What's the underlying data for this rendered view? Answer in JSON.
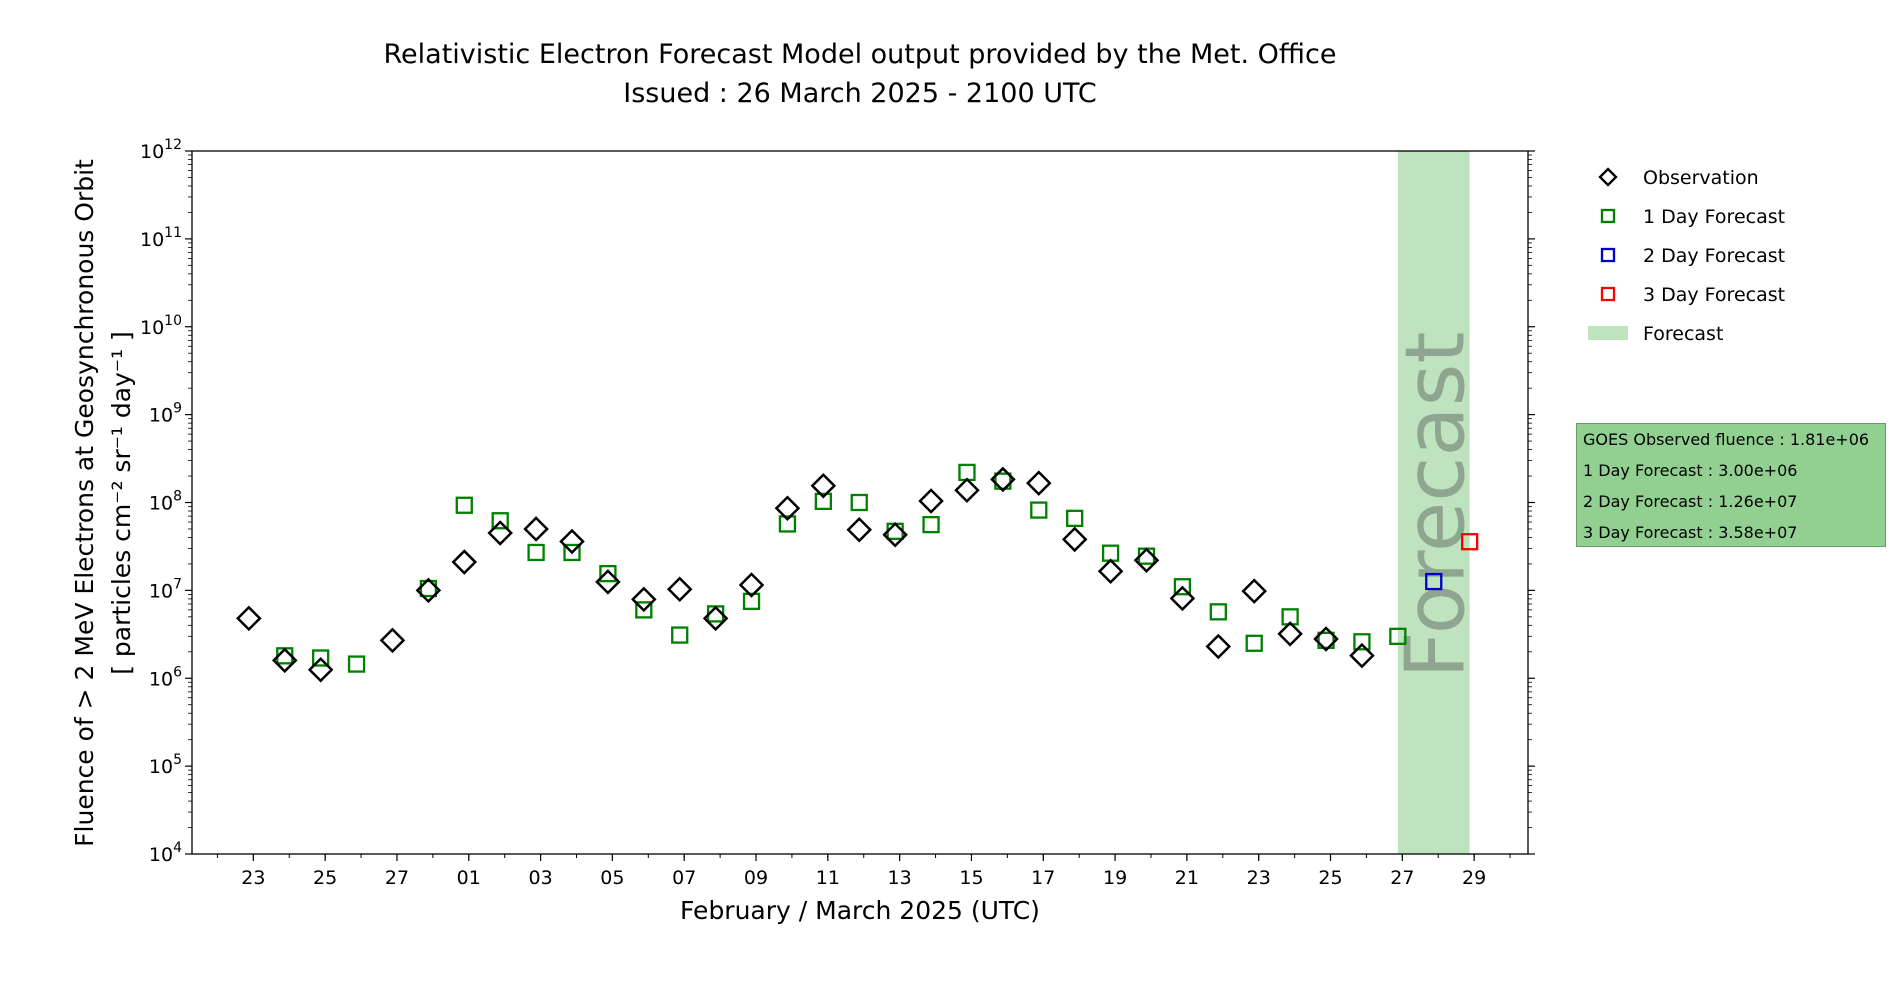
{
  "chart_data": {
    "type": "scatter",
    "title": "Relativistic Electron Forecast Model output provided by the Met. Office",
    "subtitle": "Issued : 26 March 2025 - 2100 UTC",
    "xlabel": "February / March 2025 (UTC)",
    "ylabel_line1": "Fluence of > 2 MeV Electrons at Geosynchronous Orbit",
    "ylabel_line2": "[ particles cm⁻² sr⁻¹ day⁻¹ ]",
    "yscale": "log",
    "ylim": [
      10000,
      1000000000000
    ],
    "xlim": [
      "2025-02-21 07:00",
      "2025-03-30 12:00"
    ],
    "y_ticks": [
      {
        "value": 10000,
        "base": "10",
        "exp": "4"
      },
      {
        "value": 100000,
        "base": "10",
        "exp": "5"
      },
      {
        "value": 1000000,
        "base": "10",
        "exp": "6"
      },
      {
        "value": 10000000,
        "base": "10",
        "exp": "7"
      },
      {
        "value": 100000000,
        "base": "10",
        "exp": "8"
      },
      {
        "value": 1000000000,
        "base": "10",
        "exp": "9"
      },
      {
        "value": 10000000000,
        "base": "10",
        "exp": "10"
      },
      {
        "value": 100000000000,
        "base": "10",
        "exp": "11"
      },
      {
        "value": 1000000000000,
        "base": "10",
        "exp": "12"
      }
    ],
    "x_ticks": [
      {
        "date": "2025-02-23",
        "label": "23"
      },
      {
        "date": "2025-02-25",
        "label": "25"
      },
      {
        "date": "2025-02-27",
        "label": "27"
      },
      {
        "date": "2025-03-01",
        "label": "01"
      },
      {
        "date": "2025-03-03",
        "label": "03"
      },
      {
        "date": "2025-03-05",
        "label": "05"
      },
      {
        "date": "2025-03-07",
        "label": "07"
      },
      {
        "date": "2025-03-09",
        "label": "09"
      },
      {
        "date": "2025-03-11",
        "label": "11"
      },
      {
        "date": "2025-03-13",
        "label": "13"
      },
      {
        "date": "2025-03-15",
        "label": "15"
      },
      {
        "date": "2025-03-17",
        "label": "17"
      },
      {
        "date": "2025-03-19",
        "label": "19"
      },
      {
        "date": "2025-03-21",
        "label": "21"
      },
      {
        "date": "2025-03-23",
        "label": "23"
      },
      {
        "date": "2025-03-25",
        "label": "25"
      },
      {
        "date": "2025-03-27",
        "label": "27"
      },
      {
        "date": "2025-03-29",
        "label": "29"
      }
    ],
    "forecast_band": {
      "start": "2025-03-26 21:00",
      "end": "2025-03-28 21:00",
      "label": "Forecast",
      "color": "#bfe3bf",
      "text_color": "#8fa58f"
    },
    "series": [
      {
        "name": "Observation",
        "marker": "diamond",
        "color": "#000000",
        "points": [
          {
            "x": "2025-02-22 21:00",
            "y": 4800000
          },
          {
            "x": "2025-02-23 21:00",
            "y": 1600000
          },
          {
            "x": "2025-02-24 21:00",
            "y": 1250000
          },
          {
            "x": "2025-02-26 21:00",
            "y": 2700000
          },
          {
            "x": "2025-02-27 21:00",
            "y": 10000000
          },
          {
            "x": "2025-02-28 21:00",
            "y": 21000000
          },
          {
            "x": "2025-03-01 21:00",
            "y": 45000000
          },
          {
            "x": "2025-03-02 21:00",
            "y": 50000000
          },
          {
            "x": "2025-03-03 21:00",
            "y": 36000000
          },
          {
            "x": "2025-03-04 21:00",
            "y": 12500000
          },
          {
            "x": "2025-03-05 21:00",
            "y": 7900000
          },
          {
            "x": "2025-03-06 21:00",
            "y": 10300000
          },
          {
            "x": "2025-03-07 21:00",
            "y": 4800000
          },
          {
            "x": "2025-03-08 21:00",
            "y": 11500000
          },
          {
            "x": "2025-03-09 21:00",
            "y": 86000000
          },
          {
            "x": "2025-03-10 21:00",
            "y": 155000000
          },
          {
            "x": "2025-03-11 21:00",
            "y": 49000000
          },
          {
            "x": "2025-03-12 21:00",
            "y": 43000000
          },
          {
            "x": "2025-03-13 21:00",
            "y": 104000000
          },
          {
            "x": "2025-03-14 21:00",
            "y": 138000000
          },
          {
            "x": "2025-03-15 21:00",
            "y": 183000000
          },
          {
            "x": "2025-03-16 21:00",
            "y": 166000000
          },
          {
            "x": "2025-03-17 21:00",
            "y": 38000000
          },
          {
            "x": "2025-03-18 21:00",
            "y": 16500000
          },
          {
            "x": "2025-03-19 21:00",
            "y": 22000000
          },
          {
            "x": "2025-03-20 21:00",
            "y": 8100000
          },
          {
            "x": "2025-03-21 21:00",
            "y": 2300000
          },
          {
            "x": "2025-03-22 21:00",
            "y": 9800000
          },
          {
            "x": "2025-03-23 21:00",
            "y": 3200000
          },
          {
            "x": "2025-03-24 21:00",
            "y": 2800000
          },
          {
            "x": "2025-03-25 21:00",
            "y": 1810000
          }
        ]
      },
      {
        "name": "1 Day Forecast",
        "marker": "square",
        "color": "#008000",
        "points": [
          {
            "x": "2025-02-23 21:00",
            "y": 1800000
          },
          {
            "x": "2025-02-24 21:00",
            "y": 1700000
          },
          {
            "x": "2025-02-25 21:00",
            "y": 1450000
          },
          {
            "x": "2025-02-27 21:00",
            "y": 10500000
          },
          {
            "x": "2025-02-28 21:00",
            "y": 93000000
          },
          {
            "x": "2025-03-01 21:00",
            "y": 62000000
          },
          {
            "x": "2025-03-02 21:00",
            "y": 27000000
          },
          {
            "x": "2025-03-03 21:00",
            "y": 27000000
          },
          {
            "x": "2025-03-04 21:00",
            "y": 15500000
          },
          {
            "x": "2025-03-05 21:00",
            "y": 6000000
          },
          {
            "x": "2025-03-06 21:00",
            "y": 3100000
          },
          {
            "x": "2025-03-07 21:00",
            "y": 5400000
          },
          {
            "x": "2025-03-08 21:00",
            "y": 7500000
          },
          {
            "x": "2025-03-09 21:00",
            "y": 57000000
          },
          {
            "x": "2025-03-10 21:00",
            "y": 103000000
          },
          {
            "x": "2025-03-11 21:00",
            "y": 100000000
          },
          {
            "x": "2025-03-12 21:00",
            "y": 47000000
          },
          {
            "x": "2025-03-13 21:00",
            "y": 56000000
          },
          {
            "x": "2025-03-14 21:00",
            "y": 220000000
          },
          {
            "x": "2025-03-15 21:00",
            "y": 175000000
          },
          {
            "x": "2025-03-16 21:00",
            "y": 82000000
          },
          {
            "x": "2025-03-17 21:00",
            "y": 66000000
          },
          {
            "x": "2025-03-18 21:00",
            "y": 26500000
          },
          {
            "x": "2025-03-19 21:00",
            "y": 24500000
          },
          {
            "x": "2025-03-20 21:00",
            "y": 11000000
          },
          {
            "x": "2025-03-21 21:00",
            "y": 5700000
          },
          {
            "x": "2025-03-22 21:00",
            "y": 2500000
          },
          {
            "x": "2025-03-23 21:00",
            "y": 5000000
          },
          {
            "x": "2025-03-24 21:00",
            "y": 2700000
          },
          {
            "x": "2025-03-25 21:00",
            "y": 2600000
          },
          {
            "x": "2025-03-26 21:00",
            "y": 3000000
          }
        ]
      },
      {
        "name": "2 Day Forecast",
        "marker": "square",
        "color": "#0000cc",
        "points": [
          {
            "x": "2025-03-27 21:00",
            "y": 12600000
          }
        ]
      },
      {
        "name": "3 Day Forecast",
        "marker": "square",
        "color": "#ff0000",
        "points": [
          {
            "x": "2025-03-28 21:00",
            "y": 35800000
          }
        ]
      }
    ],
    "legend": {
      "placement": "right",
      "items": [
        {
          "label": "Observation",
          "marker": "diamond",
          "color": "#000000"
        },
        {
          "label": "1 Day Forecast",
          "marker": "square",
          "color": "#008000"
        },
        {
          "label": "2 Day Forecast",
          "marker": "square",
          "color": "#0000cc"
        },
        {
          "label": "3 Day Forecast",
          "marker": "square",
          "color": "#ff0000"
        },
        {
          "label": "Forecast",
          "marker": "patch",
          "color": "#bfe3bf"
        }
      ]
    }
  },
  "info_box": {
    "line1": "GOES Observed fluence : 1.81e+06",
    "line2": "1 Day Forecast : 3.00e+06",
    "line3": "2 Day Forecast : 1.26e+07",
    "line4": "3 Day Forecast : 3.58e+07",
    "background": "#92d092"
  }
}
